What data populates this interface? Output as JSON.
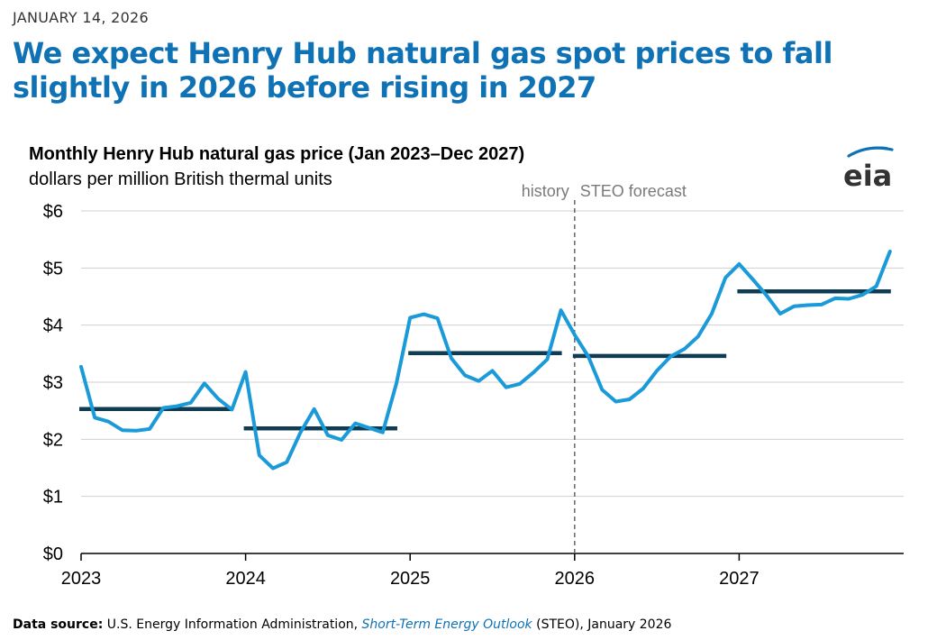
{
  "date": "JANUARY 14, 2026",
  "headline": "We expect Henry Hub natural gas spot prices to fall slightly in 2026 before rising in 2027",
  "source": {
    "label": "Data source:",
    "text1": "U.S. Energy Information Administration,",
    "link": "Short-Term Energy Outlook",
    "text2": "(STEO), January 2026"
  },
  "logo": {
    "icon": "eia-logo-icon",
    "text": "eia"
  },
  "colors": {
    "series": "#1a9ad9",
    "average": "#0f3b53",
    "headline": "#0f72b5",
    "grid": "#d0d0d0"
  },
  "chart_data": {
    "type": "line",
    "title": "Monthly Henry Hub natural gas price (Jan 2023–Dec 2027)",
    "ylabel": "dollars per million British thermal units",
    "ylim": [
      0,
      6
    ],
    "yticks": [
      "$0",
      "$1",
      "$2",
      "$3",
      "$4",
      "$5",
      "$6"
    ],
    "xticks": [
      "2023",
      "2024",
      "2025",
      "2026",
      "2027"
    ],
    "grid": true,
    "divider": {
      "at": "2026-01",
      "left_label": "history",
      "right_label": "STEO forecast"
    },
    "series": [
      {
        "x": [
          "2023-01",
          "2023-02",
          "2023-03",
          "2023-04",
          "2023-05",
          "2023-06",
          "2023-07",
          "2023-08",
          "2023-09",
          "2023-10",
          "2023-11",
          "2023-12",
          "2024-01",
          "2024-02",
          "2024-03",
          "2024-04",
          "2024-05",
          "2024-06",
          "2024-07",
          "2024-08",
          "2024-09",
          "2024-10",
          "2024-11",
          "2024-12",
          "2025-01",
          "2025-02",
          "2025-03",
          "2025-04",
          "2025-05",
          "2025-06",
          "2025-07",
          "2025-08",
          "2025-09",
          "2025-10",
          "2025-11",
          "2025-12",
          "2026-01",
          "2026-02",
          "2026-03",
          "2026-04",
          "2026-05",
          "2026-06",
          "2026-07",
          "2026-08",
          "2026-09",
          "2026-10",
          "2026-11",
          "2026-12",
          "2027-01",
          "2027-02",
          "2027-03",
          "2027-04",
          "2027-05",
          "2027-06",
          "2027-07",
          "2027-08",
          "2027-09",
          "2027-10",
          "2027-11",
          "2027-12"
        ],
        "values": [
          3.27,
          2.38,
          2.31,
          2.16,
          2.15,
          2.18,
          2.55,
          2.58,
          2.64,
          2.98,
          2.71,
          2.52,
          3.18,
          1.72,
          1.49,
          1.6,
          2.12,
          2.53,
          2.07,
          1.99,
          2.28,
          2.2,
          2.12,
          2.98,
          4.13,
          4.19,
          4.12,
          3.42,
          3.12,
          3.02,
          3.2,
          2.91,
          2.97,
          3.17,
          3.4,
          4.26,
          3.83,
          3.45,
          2.87,
          2.66,
          2.7,
          2.89,
          3.2,
          3.45,
          3.58,
          3.8,
          4.2,
          4.83,
          5.07,
          4.8,
          4.52,
          4.2,
          4.33,
          4.35,
          4.36,
          4.47,
          4.46,
          4.53,
          4.68,
          5.29
        ]
      }
    ],
    "annual_averages": [
      {
        "year": "2023",
        "value": 2.53
      },
      {
        "year": "2024",
        "value": 2.19
      },
      {
        "year": "2025",
        "value": 3.51
      },
      {
        "year": "2026",
        "value": 3.46
      },
      {
        "year": "2027",
        "value": 4.59
      }
    ]
  }
}
